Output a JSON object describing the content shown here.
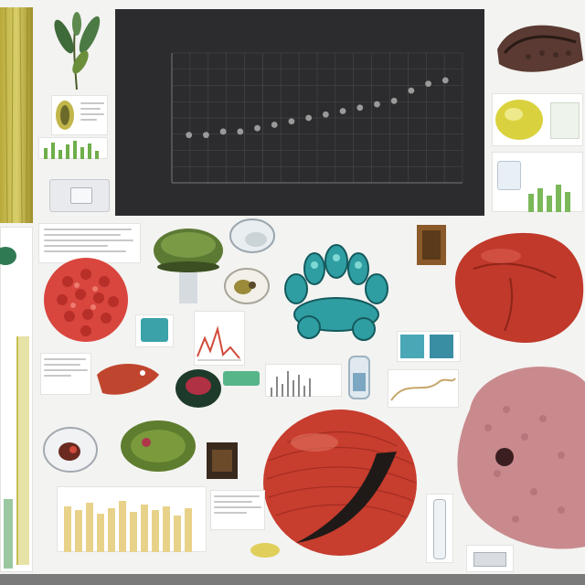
{
  "scene": {
    "type": "natural-science-collage",
    "background": "#f3f3f1"
  },
  "chart": {
    "title": "",
    "xlabel": "",
    "ylabel": ""
  },
  "chart_data": {
    "type": "scatter",
    "title": "",
    "xlabel": "",
    "ylabel": "",
    "x": [
      1,
      2,
      3,
      4,
      5,
      6,
      7,
      8,
      9,
      10,
      11,
      12,
      13,
      14,
      15,
      16
    ],
    "y": [
      14,
      14,
      15,
      15,
      16,
      17,
      18,
      19,
      20,
      21,
      22,
      23,
      24,
      27,
      29,
      30
    ],
    "xlim": [
      0,
      17
    ],
    "ylim": [
      0,
      38
    ],
    "grid": true,
    "legend": "none",
    "colors": {
      "panel": "#2c2c2e",
      "points": "#9a9a9a",
      "grid": "#4a4a4c",
      "axes": "#777777"
    }
  },
  "icons": {
    "left_strip": "kelp-frond-illustration",
    "top_plant": "seaweed-sprig-illustration",
    "coral": "red-coral-illustration",
    "anemone": "teal-anemone-illustration",
    "liver": "red-organ-illustration",
    "sphere": "red-sphere-organ-illustration",
    "sponge": "pink-sponge-illustration",
    "shell": "dark-shell-illustration"
  }
}
